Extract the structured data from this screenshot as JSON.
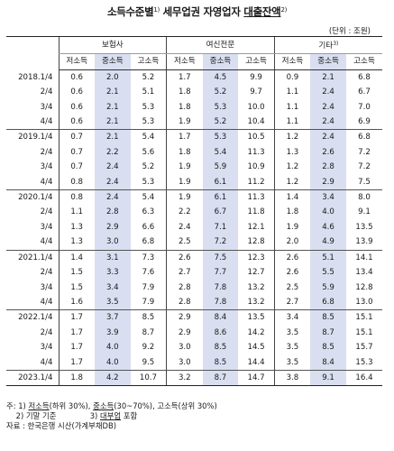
{
  "title": {
    "part1": "소득수준별",
    "sup1": "1)",
    "part2": " 세무업권 자영업자 ",
    "part3": "대출잔액",
    "sup2": "2)"
  },
  "unit": "(단위 : 조원)",
  "headers": {
    "groups": [
      "보험사",
      "여신전문",
      "기타"
    ],
    "group_sup": "3)",
    "sub": [
      "저소득",
      "중소득",
      "고소득"
    ]
  },
  "rows": [
    {
      "date": "2018.1/4",
      "values": [
        "0.6",
        "2.0",
        "5.2",
        "1.7",
        "4.5",
        "9.9",
        "0.9",
        "2.1",
        "6.8"
      ]
    },
    {
      "date": "2/4",
      "values": [
        "0.6",
        "2.1",
        "5.1",
        "1.8",
        "5.2",
        "9.7",
        "1.1",
        "2.4",
        "6.7"
      ]
    },
    {
      "date": "3/4",
      "values": [
        "0.6",
        "2.1",
        "5.3",
        "1.8",
        "5.3",
        "10.0",
        "1.1",
        "2.4",
        "7.0"
      ]
    },
    {
      "date": "4/4",
      "values": [
        "0.6",
        "2.1",
        "5.3",
        "1.9",
        "5.2",
        "10.4",
        "1.1",
        "2.4",
        "6.9"
      ]
    },
    {
      "date": "2019.1/4",
      "values": [
        "0.7",
        "2.1",
        "5.4",
        "1.7",
        "5.3",
        "10.5",
        "1.2",
        "2.4",
        "6.8"
      ]
    },
    {
      "date": "2/4",
      "values": [
        "0.7",
        "2.2",
        "5.6",
        "1.8",
        "5.4",
        "11.3",
        "1.3",
        "2.6",
        "7.2"
      ]
    },
    {
      "date": "3/4",
      "values": [
        "0.7",
        "2.4",
        "5.2",
        "1.9",
        "5.9",
        "10.9",
        "1.2",
        "2.8",
        "7.2"
      ]
    },
    {
      "date": "4/4",
      "values": [
        "0.8",
        "2.4",
        "5.3",
        "1.9",
        "6.1",
        "11.2",
        "1.2",
        "2.9",
        "7.5"
      ]
    },
    {
      "date": "2020.1/4",
      "values": [
        "0.8",
        "2.4",
        "5.4",
        "1.9",
        "6.1",
        "11.3",
        "1.4",
        "3.4",
        "8.0"
      ]
    },
    {
      "date": "2/4",
      "values": [
        "1.1",
        "2.8",
        "6.3",
        "2.2",
        "6.7",
        "11.8",
        "1.8",
        "4.0",
        "9.1"
      ]
    },
    {
      "date": "3/4",
      "values": [
        "1.3",
        "2.9",
        "6.6",
        "2.4",
        "7.1",
        "12.1",
        "1.9",
        "4.6",
        "13.5"
      ]
    },
    {
      "date": "4/4",
      "values": [
        "1.3",
        "3.0",
        "6.8",
        "2.5",
        "7.2",
        "12.8",
        "2.0",
        "4.9",
        "13.9"
      ]
    },
    {
      "date": "2021.1/4",
      "values": [
        "1.4",
        "3.1",
        "7.3",
        "2.6",
        "7.5",
        "12.3",
        "2.6",
        "5.1",
        "14.1"
      ]
    },
    {
      "date": "2/4",
      "values": [
        "1.5",
        "3.3",
        "7.6",
        "2.7",
        "7.7",
        "12.7",
        "2.6",
        "5.5",
        "13.4"
      ]
    },
    {
      "date": "3/4",
      "values": [
        "1.5",
        "3.4",
        "7.9",
        "2.8",
        "7.8",
        "13.2",
        "2.5",
        "5.9",
        "12.8"
      ]
    },
    {
      "date": "4/4",
      "values": [
        "1.6",
        "3.5",
        "7.9",
        "2.8",
        "7.8",
        "13.2",
        "2.7",
        "6.8",
        "13.0"
      ]
    },
    {
      "date": "2022.1/4",
      "values": [
        "1.7",
        "3.7",
        "8.5",
        "2.9",
        "8.4",
        "13.5",
        "3.4",
        "8.5",
        "15.1"
      ]
    },
    {
      "date": "2/4",
      "values": [
        "1.7",
        "3.9",
        "8.7",
        "2.9",
        "8.6",
        "14.2",
        "3.5",
        "8.7",
        "15.1"
      ]
    },
    {
      "date": "3/4",
      "values": [
        "1.7",
        "4.0",
        "9.2",
        "3.0",
        "8.5",
        "14.5",
        "3.5",
        "8.5",
        "15.7"
      ]
    },
    {
      "date": "4/4",
      "values": [
        "1.7",
        "4.0",
        "9.5",
        "3.0",
        "8.5",
        "14.4",
        "3.5",
        "8.4",
        "15.3"
      ]
    },
    {
      "date": "2023.1/4",
      "values": [
        "1.8",
        "4.2",
        "10.7",
        "3.2",
        "8.7",
        "14.7",
        "3.8",
        "9.1",
        "16.4"
      ]
    }
  ],
  "notes": {
    "n1_prefix": "주: 1) ",
    "n1_a": "저소득",
    "n1_b": "(하위 30%), ",
    "n1_c": "중소득",
    "n1_d": "(30~70%), 고소득(상위 30%)",
    "n2": "2) 기말 기준",
    "n3_a": "3) ",
    "n3_b": "대부업",
    "n3_c": " 포함",
    "source": "자료 : 한국은행 시산(가계부채DB)"
  }
}
